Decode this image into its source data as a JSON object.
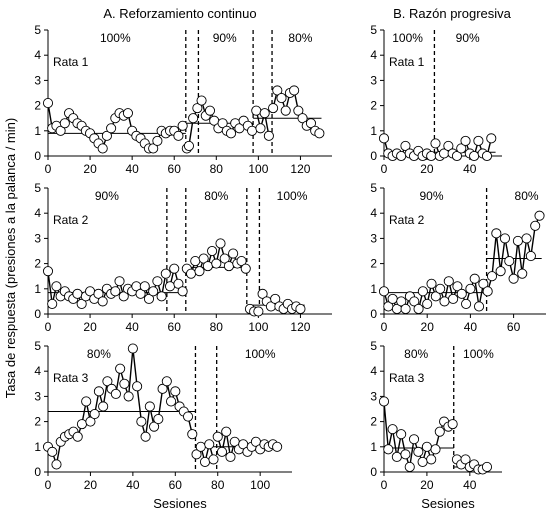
{
  "titles": {
    "left": "A. Reforzamiento continuo",
    "right": "B. Razón progresiva"
  },
  "ylabel": "Tasa de respuesta (presiones a la palanca / min)",
  "xlabel": "Sesiones",
  "chart_data": [
    {
      "type": "scatter",
      "column": "A. Reforzamiento continuo",
      "rat": "Rata 1",
      "xlim": [
        0,
        135
      ],
      "ylim": [
        0,
        5
      ],
      "xticks": [
        0,
        20,
        40,
        60,
        80,
        100,
        120
      ],
      "yticks": [
        0,
        1,
        2,
        3,
        4,
        5
      ],
      "phase_boundaries": [
        65.5,
        71.5,
        97.5,
        106.5
      ],
      "phase_labels": [
        {
          "text": "100%",
          "x": 32
        },
        {
          "text": "90%",
          "x": 84
        },
        {
          "text": "80%",
          "x": 120
        }
      ],
      "means": [
        {
          "x": [
            0,
            65.5
          ],
          "y": 0.9
        },
        {
          "x": [
            65.5,
            97.5
          ],
          "y": 1.3
        },
        {
          "x": [
            97.5,
            130
          ],
          "y": 1.5
        }
      ],
      "points": [
        [
          0,
          2.1
        ],
        [
          2,
          1.1
        ],
        [
          4,
          1.2
        ],
        [
          6,
          1.0
        ],
        [
          8,
          1.3
        ],
        [
          10,
          1.7
        ],
        [
          12,
          1.5
        ],
        [
          14,
          1.3
        ],
        [
          16,
          1.2
        ],
        [
          18,
          1.0
        ],
        [
          20,
          0.9
        ],
        [
          22,
          0.7
        ],
        [
          24,
          0.5
        ],
        [
          26,
          0.3
        ],
        [
          28,
          0.8
        ],
        [
          30,
          1.1
        ],
        [
          32,
          1.5
        ],
        [
          34,
          1.7
        ],
        [
          36,
          1.6
        ],
        [
          38,
          1.7
        ],
        [
          40,
          1.0
        ],
        [
          42,
          0.8
        ],
        [
          44,
          0.7
        ],
        [
          46,
          0.5
        ],
        [
          48,
          0.3
        ],
        [
          50,
          0.3
        ],
        [
          52,
          0.6
        ],
        [
          54,
          1.0
        ],
        [
          56,
          0.9
        ],
        [
          58,
          1.0
        ],
        [
          60,
          1.0
        ],
        [
          62,
          0.8
        ],
        [
          64,
          1.2
        ],
        [
          66,
          0.3
        ],
        [
          67,
          0.4
        ],
        [
          69,
          1.5
        ],
        [
          71,
          1.9
        ],
        [
          73,
          2.2
        ],
        [
          75,
          1.6
        ],
        [
          77,
          1.8
        ],
        [
          79,
          1.4
        ],
        [
          81,
          1.1
        ],
        [
          83,
          1.3
        ],
        [
          85,
          1.0
        ],
        [
          87,
          0.9
        ],
        [
          89,
          1.3
        ],
        [
          91,
          1.1
        ],
        [
          93,
          1.4
        ],
        [
          95,
          1.2
        ],
        [
          97,
          1.0
        ],
        [
          99,
          1.8
        ],
        [
          101,
          1.1
        ],
        [
          103,
          1.7
        ],
        [
          105,
          0.8
        ],
        [
          107,
          1.9
        ],
        [
          109,
          2.6
        ],
        [
          111,
          2.3
        ],
        [
          113,
          1.8
        ],
        [
          115,
          2.5
        ],
        [
          117,
          2.6
        ],
        [
          119,
          1.8
        ],
        [
          121,
          1.5
        ],
        [
          123,
          1.2
        ],
        [
          125,
          1.3
        ],
        [
          127,
          1.0
        ],
        [
          129,
          0.9
        ]
      ]
    },
    {
      "type": "scatter",
      "column": "A. Reforzamiento continuo",
      "rat": "Rata 2",
      "xlim": [
        0,
        135
      ],
      "ylim": [
        0,
        5
      ],
      "xticks": [
        0,
        20,
        40,
        60,
        80,
        100,
        120
      ],
      "yticks": [
        0,
        1,
        2,
        3,
        4,
        5
      ],
      "phase_boundaries": [
        56.5,
        65.5,
        94.5,
        100.5
      ],
      "phase_labels": [
        {
          "text": "90%",
          "x": 28
        },
        {
          "text": "80%",
          "x": 80
        },
        {
          "text": "100%",
          "x": 116
        }
      ],
      "means": [
        {
          "x": [
            0,
            65.5
          ],
          "y": 0.85
        },
        {
          "x": [
            65.5,
            94.5
          ],
          "y": 1.85
        },
        {
          "x": [
            94.5,
            122
          ],
          "y": 0.35
        }
      ],
      "points": [
        [
          0,
          1.7
        ],
        [
          2,
          0.4
        ],
        [
          4,
          1.1
        ],
        [
          6,
          0.7
        ],
        [
          8,
          0.9
        ],
        [
          10,
          0.7
        ],
        [
          12,
          0.6
        ],
        [
          14,
          0.8
        ],
        [
          16,
          0.4
        ],
        [
          18,
          0.7
        ],
        [
          20,
          0.9
        ],
        [
          22,
          0.6
        ],
        [
          24,
          0.8
        ],
        [
          26,
          0.5
        ],
        [
          28,
          1.0
        ],
        [
          30,
          0.8
        ],
        [
          32,
          0.9
        ],
        [
          34,
          1.3
        ],
        [
          36,
          0.7
        ],
        [
          38,
          1.0
        ],
        [
          40,
          0.9
        ],
        [
          42,
          1.1
        ],
        [
          44,
          0.8
        ],
        [
          46,
          1.1
        ],
        [
          48,
          0.6
        ],
        [
          50,
          0.9
        ],
        [
          52,
          1.3
        ],
        [
          54,
          0.7
        ],
        [
          56,
          1.6
        ],
        [
          58,
          1.1
        ],
        [
          60,
          1.8
        ],
        [
          62,
          1.2
        ],
        [
          64,
          0.9
        ],
        [
          66,
          1.8
        ],
        [
          68,
          1.6
        ],
        [
          70,
          2.1
        ],
        [
          72,
          1.7
        ],
        [
          74,
          2.2
        ],
        [
          76,
          1.9
        ],
        [
          78,
          2.5
        ],
        [
          80,
          2.0
        ],
        [
          82,
          2.8
        ],
        [
          84,
          2.2
        ],
        [
          86,
          1.9
        ],
        [
          88,
          2.4
        ],
        [
          90,
          2.0
        ],
        [
          92,
          2.1
        ],
        [
          94,
          1.8
        ],
        [
          96,
          0.2
        ],
        [
          98,
          0.1
        ],
        [
          100,
          0.1
        ],
        [
          102,
          0.8
        ],
        [
          104,
          0.5
        ],
        [
          106,
          0.3
        ],
        [
          108,
          0.6
        ],
        [
          110,
          0.3
        ],
        [
          112,
          0.2
        ],
        [
          114,
          0.4
        ],
        [
          116,
          0.2
        ],
        [
          118,
          0.3
        ],
        [
          120,
          0.2
        ]
      ]
    },
    {
      "type": "scatter",
      "column": "A. Reforzamiento continuo",
      "rat": "Rata 3",
      "xlim": [
        0,
        115
      ],
      "ylim": [
        0,
        5
      ],
      "xticks": [
        0,
        20,
        40,
        60,
        80,
        100
      ],
      "yticks": [
        0,
        1,
        2,
        3,
        4,
        5
      ],
      "phase_boundaries": [
        69.5,
        79.5
      ],
      "phase_labels": [
        {
          "text": "80%",
          "x": 24
        },
        {
          "text": "100%",
          "x": 100
        }
      ],
      "means": [
        {
          "x": [
            0,
            69.5
          ],
          "y": 2.4
        },
        {
          "x": [
            69.5,
            110
          ],
          "y": 1.0
        }
      ],
      "points": [
        [
          0,
          1.0
        ],
        [
          2,
          0.8
        ],
        [
          4,
          0.3
        ],
        [
          6,
          1.2
        ],
        [
          8,
          1.4
        ],
        [
          10,
          1.5
        ],
        [
          12,
          1.6
        ],
        [
          14,
          1.4
        ],
        [
          16,
          1.9
        ],
        [
          18,
          2.8
        ],
        [
          20,
          2.0
        ],
        [
          22,
          2.3
        ],
        [
          24,
          3.2
        ],
        [
          26,
          2.6
        ],
        [
          28,
          3.6
        ],
        [
          30,
          3.3
        ],
        [
          32,
          3.1
        ],
        [
          34,
          4.1
        ],
        [
          36,
          3.5
        ],
        [
          38,
          3.0
        ],
        [
          40,
          4.9
        ],
        [
          42,
          3.4
        ],
        [
          44,
          2.0
        ],
        [
          46,
          1.4
        ],
        [
          48,
          2.6
        ],
        [
          50,
          1.8
        ],
        [
          52,
          2.1
        ],
        [
          54,
          3.3
        ],
        [
          56,
          3.6
        ],
        [
          58,
          2.8
        ],
        [
          60,
          3.2
        ],
        [
          62,
          2.6
        ],
        [
          64,
          2.4
        ],
        [
          66,
          2.2
        ],
        [
          68,
          1.5
        ],
        [
          70,
          0.7
        ],
        [
          72,
          1.0
        ],
        [
          74,
          0.4
        ],
        [
          76,
          1.1
        ],
        [
          78,
          0.5
        ],
        [
          80,
          1.4
        ],
        [
          82,
          0.8
        ],
        [
          84,
          1.6
        ],
        [
          86,
          0.6
        ],
        [
          88,
          1.2
        ],
        [
          90,
          0.9
        ],
        [
          92,
          1.1
        ],
        [
          94,
          0.8
        ],
        [
          96,
          1.0
        ],
        [
          98,
          1.2
        ],
        [
          100,
          0.9
        ],
        [
          102,
          1.1
        ],
        [
          104,
          1.0
        ],
        [
          106,
          1.1
        ],
        [
          108,
          1.0
        ]
      ]
    },
    {
      "type": "scatter",
      "column": "B. Razón progresiva",
      "rat": "Rata 1",
      "xlim": [
        0,
        55
      ],
      "ylim": [
        0,
        5
      ],
      "xticks": [
        0,
        20,
        40
      ],
      "yticks": [
        0,
        1,
        2,
        3,
        4,
        5
      ],
      "phase_boundaries": [
        23.5
      ],
      "phase_labels": [
        {
          "text": "100%",
          "x": 11
        },
        {
          "text": "90%",
          "x": 39
        }
      ],
      "means": [
        {
          "x": [
            0,
            23.5
          ],
          "y": 0.1
        },
        {
          "x": [
            23.5,
            52
          ],
          "y": 0.15
        }
      ],
      "points": [
        [
          0,
          0.7
        ],
        [
          2,
          0.1
        ],
        [
          4,
          0.0
        ],
        [
          6,
          0.1
        ],
        [
          8,
          0.0
        ],
        [
          10,
          0.4
        ],
        [
          12,
          0.1
        ],
        [
          14,
          0.0
        ],
        [
          16,
          0.2
        ],
        [
          18,
          0.0
        ],
        [
          20,
          0.1
        ],
        [
          22,
          0.0
        ],
        [
          24,
          0.5
        ],
        [
          26,
          0.0
        ],
        [
          28,
          0.1
        ],
        [
          30,
          0.4
        ],
        [
          32,
          0.1
        ],
        [
          34,
          0.0
        ],
        [
          36,
          0.3
        ],
        [
          38,
          0.6
        ],
        [
          40,
          0.1
        ],
        [
          42,
          0.0
        ],
        [
          44,
          0.6
        ],
        [
          46,
          0.1
        ],
        [
          48,
          0.0
        ],
        [
          50,
          0.7
        ]
      ]
    },
    {
      "type": "scatter",
      "column": "B. Razón progresiva",
      "rat": "Rata 2",
      "xlim": [
        0,
        75
      ],
      "ylim": [
        0,
        5
      ],
      "xticks": [
        0,
        20,
        40,
        60
      ],
      "yticks": [
        0,
        1,
        2,
        3,
        4,
        5
      ],
      "phase_boundaries": [
        47.5
      ],
      "phase_labels": [
        {
          "text": "90%",
          "x": 22
        },
        {
          "text": "80%",
          "x": 66
        }
      ],
      "means": [
        {
          "x": [
            0,
            47.5
          ],
          "y": 0.85
        },
        {
          "x": [
            47.5,
            73
          ],
          "y": 2.2
        }
      ],
      "points": [
        [
          0,
          0.9
        ],
        [
          2,
          0.3
        ],
        [
          4,
          0.6
        ],
        [
          6,
          0.2
        ],
        [
          8,
          0.5
        ],
        [
          10,
          0.2
        ],
        [
          12,
          0.7
        ],
        [
          14,
          0.5
        ],
        [
          16,
          0.2
        ],
        [
          18,
          0.9
        ],
        [
          20,
          0.4
        ],
        [
          22,
          1.2
        ],
        [
          24,
          0.7
        ],
        [
          26,
          1.0
        ],
        [
          28,
          0.5
        ],
        [
          30,
          1.3
        ],
        [
          32,
          0.6
        ],
        [
          34,
          1.1
        ],
        [
          36,
          0.8
        ],
        [
          38,
          0.4
        ],
        [
          40,
          1.0
        ],
        [
          42,
          1.4
        ],
        [
          44,
          0.3
        ],
        [
          46,
          1.2
        ],
        [
          48,
          0.9
        ],
        [
          50,
          1.5
        ],
        [
          52,
          3.2
        ],
        [
          54,
          1.7
        ],
        [
          56,
          3.0
        ],
        [
          58,
          2.1
        ],
        [
          60,
          1.4
        ],
        [
          62,
          2.9
        ],
        [
          64,
          1.6
        ],
        [
          66,
          3.0
        ],
        [
          68,
          2.3
        ],
        [
          70,
          3.5
        ],
        [
          72,
          3.9
        ]
      ]
    },
    {
      "type": "scatter",
      "column": "B. Razón progresiva",
      "rat": "Rata 3",
      "xlim": [
        0,
        55
      ],
      "ylim": [
        0,
        5
      ],
      "xticks": [
        0,
        20,
        40
      ],
      "yticks": [
        0,
        1,
        2,
        3,
        4,
        5
      ],
      "phase_boundaries": [
        32.5
      ],
      "phase_labels": [
        {
          "text": "80%",
          "x": 15
        },
        {
          "text": "100%",
          "x": 44
        }
      ],
      "means": [
        {
          "x": [
            0,
            32.5
          ],
          "y": 0.95
        },
        {
          "x": [
            32.5,
            50
          ],
          "y": 0.2
        }
      ],
      "points": [
        [
          0,
          2.8
        ],
        [
          2,
          0.9
        ],
        [
          4,
          1.7
        ],
        [
          6,
          0.6
        ],
        [
          8,
          1.5
        ],
        [
          10,
          0.7
        ],
        [
          12,
          0.2
        ],
        [
          14,
          1.3
        ],
        [
          16,
          0.8
        ],
        [
          18,
          0.4
        ],
        [
          20,
          1.0
        ],
        [
          22,
          0.5
        ],
        [
          24,
          0.9
        ],
        [
          26,
          1.6
        ],
        [
          28,
          2.0
        ],
        [
          30,
          1.8
        ],
        [
          32,
          1.9
        ],
        [
          34,
          0.5
        ],
        [
          36,
          0.3
        ],
        [
          38,
          0.5
        ],
        [
          40,
          0.2
        ],
        [
          42,
          0.3
        ],
        [
          44,
          0.1
        ],
        [
          46,
          0.1
        ],
        [
          48,
          0.2
        ]
      ]
    }
  ]
}
